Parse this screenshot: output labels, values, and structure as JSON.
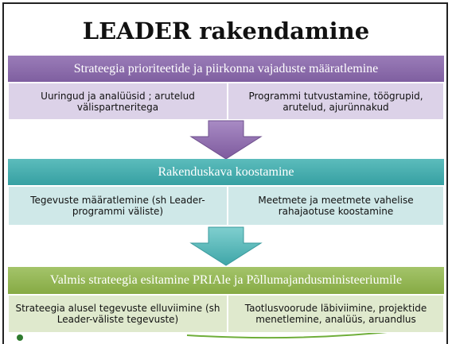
{
  "title": "LEADER rakendamine",
  "sections": [
    {
      "heading": "Strateegia prioriteetide ja piirkonna vajaduste määratlemine",
      "items": [
        "Uuringud ja analüüsid ; arutelud välispartneritega",
        "Programmi tutvustamine, töögrupid, arutelud, ajurünnakud"
      ]
    },
    {
      "heading": "Rakenduskava koostamine",
      "items": [
        "Tegevuste määratlemine (sh Leader-programmi väliste)",
        "Meetmete ja meetmete vahelise rahajaotuse koostamine"
      ]
    },
    {
      "heading": "Valmis strateegia esitamine PRIAle ja Põllumajandusministeeriumile",
      "items": [
        "Strateegia alusel tegevuste elluviimine (sh Leader-väliste tegevuste)",
        "Taotlusvoorude läbiviimine, projektide menetlemine, analüüs, aruandlus"
      ]
    }
  ]
}
